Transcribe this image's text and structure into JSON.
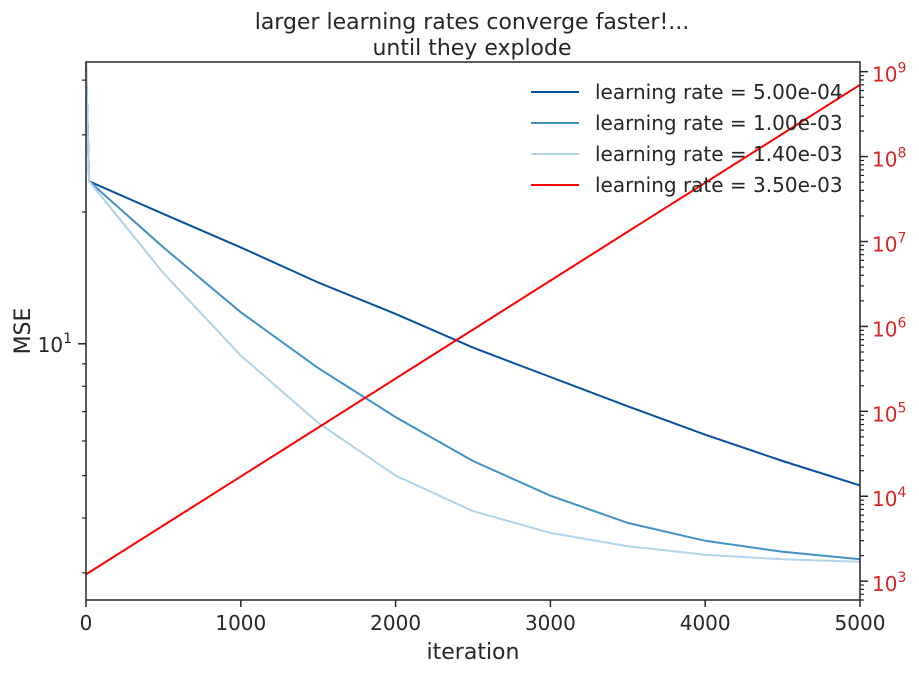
{
  "chart_data": {
    "type": "line",
    "title_lines": [
      "larger learning rates converge faster!...",
      "until they explode"
    ],
    "xlabel": "iteration",
    "ylabel": "MSE",
    "xlim": [
      0,
      5000
    ],
    "x_ticks": [
      0,
      1000,
      2000,
      3000,
      4000,
      5000
    ],
    "x_tick_labels": [
      "0",
      "1000",
      "2000",
      "3000",
      "4000",
      "5000"
    ],
    "y_left": {
      "scale": "log",
      "range": [
        2.6,
        44
      ],
      "major_ticks": [
        10
      ],
      "major_tick_labels": [
        {
          "base": "10",
          "exp": "1"
        }
      ],
      "minor_ticks": [
        3,
        4,
        5,
        6,
        7,
        8,
        9,
        20,
        30,
        40
      ]
    },
    "y_right": {
      "scale": "log",
      "range": [
        600,
        1300000000.0
      ],
      "color": "#d62728",
      "major_ticks": [
        1000.0,
        10000.0,
        100000.0,
        1000000.0,
        10000000.0,
        100000000.0,
        1000000000.0
      ],
      "major_tick_labels": [
        {
          "base": "10",
          "exp": "3"
        },
        {
          "base": "10",
          "exp": "4"
        },
        {
          "base": "10",
          "exp": "5"
        },
        {
          "base": "10",
          "exp": "6"
        },
        {
          "base": "10",
          "exp": "7"
        },
        {
          "base": "10",
          "exp": "8"
        },
        {
          "base": "10",
          "exp": "9"
        }
      ]
    },
    "legend_position": "top-right",
    "series": [
      {
        "name": "learning rate = 5.00e-04",
        "color": "#08519c",
        "axis": "left",
        "x": [
          0,
          20,
          500,
          1000,
          1500,
          2000,
          2500,
          3000,
          3500,
          4000,
          4500,
          5000
        ],
        "y": [
          44,
          23.5,
          19.8,
          16.6,
          13.8,
          11.7,
          9.8,
          8.4,
          7.2,
          6.2,
          5.4,
          4.75
        ]
      },
      {
        "name": "learning rate = 1.00e-03",
        "color": "#4292c6",
        "axis": "left",
        "x": [
          0,
          20,
          500,
          1000,
          1500,
          2000,
          2500,
          3000,
          3500,
          4000,
          4500,
          5000
        ],
        "y": [
          44,
          23.5,
          16.6,
          11.8,
          8.8,
          6.8,
          5.4,
          4.5,
          3.9,
          3.55,
          3.35,
          3.22
        ]
      },
      {
        "name": "learning rate = 1.40e-03",
        "color": "#b3d3e8",
        "axis": "left",
        "x": [
          0,
          20,
          500,
          1000,
          1500,
          2000,
          2500,
          3000,
          3500,
          4000,
          4500,
          5000
        ],
        "y": [
          44,
          23.5,
          14.5,
          9.4,
          6.6,
          5.0,
          4.15,
          3.7,
          3.45,
          3.3,
          3.22,
          3.18
        ]
      },
      {
        "name": "learning rate = 3.50e-03",
        "color": "#ff0000",
        "axis": "right",
        "x": [
          0,
          5000
        ],
        "y": [
          1200,
          700000000
        ]
      }
    ]
  }
}
